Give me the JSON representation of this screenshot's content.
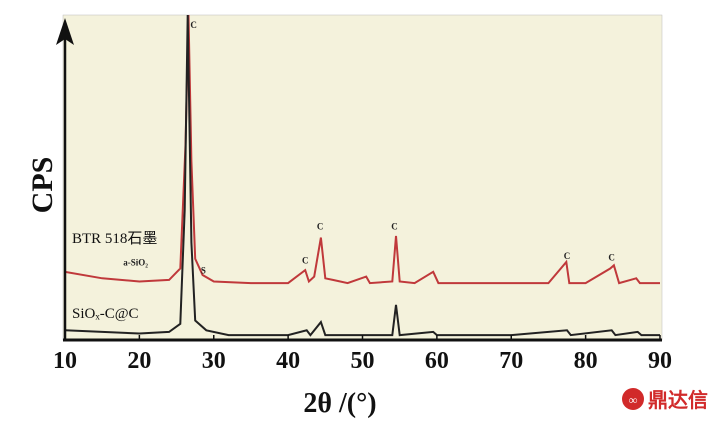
{
  "chart_data": {
    "type": "line",
    "y_label": "CPS",
    "x_label": "2θ /(°)",
    "xlim": [
      10,
      90
    ],
    "xticks": [
      10,
      20,
      30,
      40,
      50,
      60,
      70,
      80,
      90
    ],
    "ylim": [
      0,
      100
    ],
    "background": "#f4f2dc",
    "series": [
      {
        "name": "BTR 518石墨",
        "color": "#c0393b",
        "x": [
          10,
          15,
          20,
          24,
          25.5,
          26.2,
          26.6,
          27,
          27.5,
          28.5,
          30,
          35,
          40,
          42.3,
          42.8,
          43.5,
          44.4,
          45,
          46,
          48,
          50.5,
          51,
          54,
          54.5,
          55,
          57,
          59.5,
          60.2,
          65,
          70,
          75,
          77.4,
          77.8,
          80,
          83.3,
          83.8,
          84.5,
          86.8,
          87.3,
          90
        ],
        "values": [
          21,
          19,
          18,
          18.5,
          22,
          60,
          100,
          55,
          25,
          20,
          18,
          17.5,
          17.5,
          21.5,
          18,
          19.5,
          31.5,
          19,
          18.5,
          17.5,
          19.5,
          17.5,
          18,
          32,
          18,
          17.5,
          21,
          17.5,
          17.5,
          17.5,
          17.5,
          24,
          17.5,
          17.5,
          22,
          23,
          17.5,
          19,
          17.5,
          17.5
        ]
      },
      {
        "name": "SiOₓ-C@C",
        "color": "#222222",
        "x": [
          10,
          15,
          20,
          24,
          25.5,
          26.1,
          26.5,
          27,
          27.5,
          29,
          32,
          40,
          42.5,
          43,
          44.4,
          45,
          50,
          54,
          54.5,
          55,
          59.5,
          60,
          70,
          77.5,
          78,
          83.5,
          84,
          87,
          87.5,
          90
        ],
        "values": [
          3,
          2.5,
          2,
          2.5,
          5,
          40,
          100,
          30,
          6,
          3,
          1.5,
          1.5,
          3,
          1.5,
          5.5,
          1.5,
          1.5,
          1.5,
          10.8,
          1.5,
          2.5,
          1.5,
          1.5,
          3,
          1.5,
          3,
          1.5,
          2.5,
          1.5,
          1.5
        ]
      }
    ],
    "annotations": [
      {
        "text": "C",
        "x": 27.3,
        "y": 96
      },
      {
        "text": "a-SiO₂",
        "x": 19.5,
        "y": 23
      },
      {
        "text": "S",
        "x": 28.6,
        "y": 20.5
      },
      {
        "text": "C",
        "x": 42.3,
        "y": 23.5
      },
      {
        "text": "C",
        "x": 44.3,
        "y": 34
      },
      {
        "text": "C",
        "x": 54.3,
        "y": 34
      },
      {
        "text": "C",
        "x": 77.5,
        "y": 25
      },
      {
        "text": "C",
        "x": 83.5,
        "y": 24.5
      }
    ],
    "watermark": "鼎达信"
  }
}
